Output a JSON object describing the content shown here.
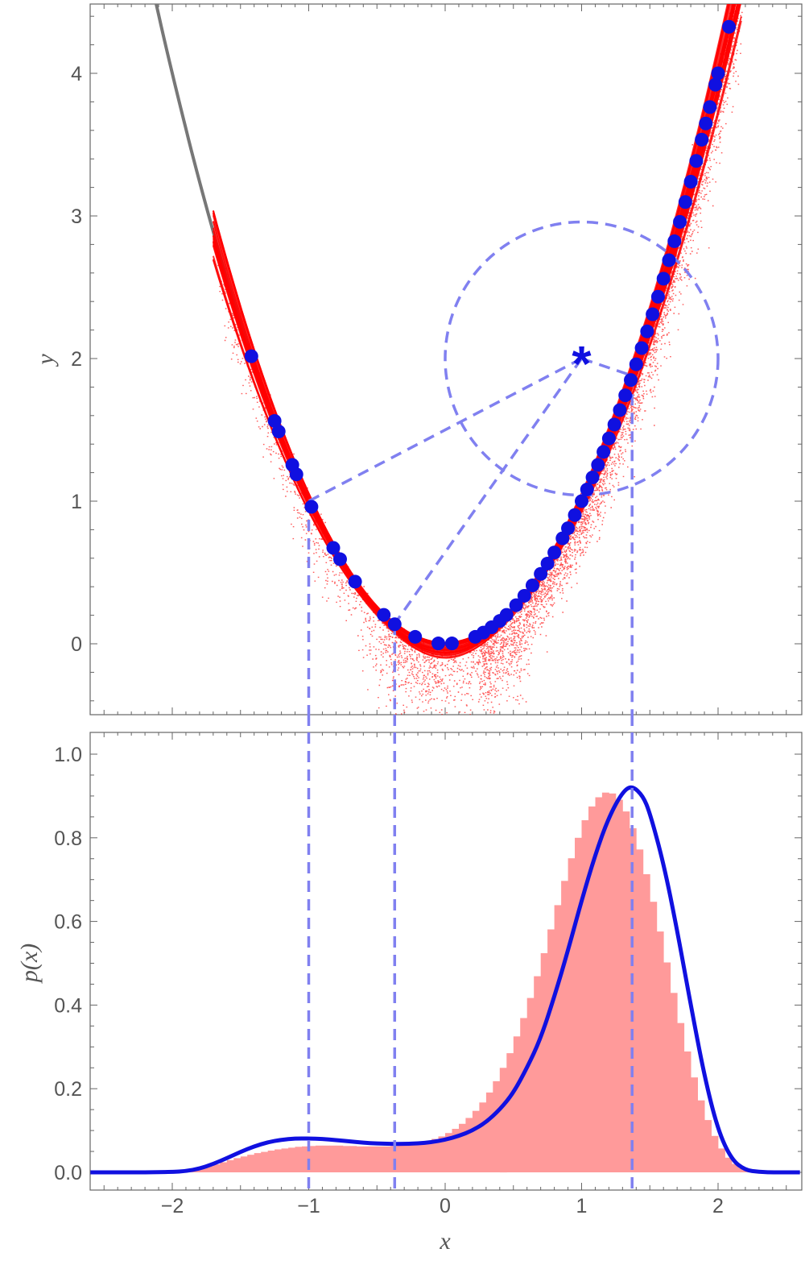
{
  "chart_data": [
    {
      "type": "scatter",
      "xlabel": "",
      "ylabel": "y",
      "xlim": [
        -2.6,
        2.6
      ],
      "ylim": [
        -0.5,
        4.5
      ],
      "x_ticks": [
        -2,
        -1,
        0,
        1,
        2
      ],
      "y_ticks": [
        0,
        1,
        2,
        3,
        4
      ],
      "y_tick_labels": [
        "0",
        "1",
        "2",
        "3",
        "4"
      ],
      "curve": {
        "function": "y = x^2",
        "color": "#777777"
      },
      "target_point": {
        "x": 1,
        "y": 2,
        "marker": "*"
      },
      "circle": {
        "center": [
          1,
          2
        ],
        "radius": 1
      },
      "connected_points": [
        {
          "x": -1.0,
          "y": 1.0
        },
        {
          "x": -0.37,
          "y": 0.14
        },
        {
          "x": 1.37,
          "y": 1.88
        }
      ],
      "sample_points_x": [
        -1.42,
        -1.25,
        -1.22,
        -1.12,
        -1.09,
        -0.98,
        -0.82,
        -0.77,
        -0.66,
        -0.45,
        -0.37,
        -0.22,
        -0.05,
        0.05,
        0.22,
        0.28,
        0.34,
        0.4,
        0.45,
        0.52,
        0.58,
        0.64,
        0.7,
        0.75,
        0.8,
        0.86,
        0.9,
        0.95,
        1.0,
        1.04,
        1.08,
        1.12,
        1.16,
        1.2,
        1.24,
        1.28,
        1.32,
        1.36,
        1.4,
        1.44,
        1.48,
        1.52,
        1.56,
        1.6,
        1.64,
        1.68,
        1.72,
        1.76,
        1.8,
        1.84,
        1.88,
        1.91,
        1.94,
        1.98,
        2.0,
        2.08
      ],
      "colors": {
        "curve": "#777777",
        "points": "#1010e0",
        "scatter": "#ff0000",
        "dashed": "#8080f0"
      }
    },
    {
      "type": "bar",
      "xlabel": "x",
      "ylabel": "p(x)",
      "xlim": [
        -2.6,
        2.6
      ],
      "ylim": [
        0,
        1.05
      ],
      "x_ticks": [
        -2,
        -1,
        0,
        1,
        2
      ],
      "x_tick_labels": [
        "−2",
        "−1",
        "0",
        "1",
        "2"
      ],
      "y_ticks": [
        0,
        0.2,
        0.4,
        0.6,
        0.8,
        1.0
      ],
      "y_tick_labels": [
        "0.0",
        "0.2",
        "0.4",
        "0.6",
        "0.8",
        "1.0"
      ],
      "bin_width": 0.05,
      "bin_start": -2.0,
      "histogram_values": [
        0.003,
        0.004,
        0.006,
        0.008,
        0.011,
        0.015,
        0.019,
        0.024,
        0.029,
        0.034,
        0.038,
        0.042,
        0.046,
        0.049,
        0.052,
        0.055,
        0.057,
        0.059,
        0.061,
        0.062,
        0.063,
        0.064,
        0.064,
        0.064,
        0.064,
        0.063,
        0.063,
        0.062,
        0.062,
        0.062,
        0.062,
        0.062,
        0.063,
        0.064,
        0.066,
        0.068,
        0.071,
        0.075,
        0.08,
        0.086,
        0.094,
        0.104,
        0.116,
        0.13,
        0.147,
        0.167,
        0.191,
        0.218,
        0.25,
        0.285,
        0.325,
        0.369,
        0.417,
        0.469,
        0.524,
        0.581,
        0.639,
        0.697,
        0.751,
        0.8,
        0.842,
        0.875,
        0.897,
        0.908,
        0.906,
        0.891,
        0.863,
        0.823,
        0.772,
        0.713,
        0.647,
        0.576,
        0.502,
        0.429,
        0.357,
        0.289,
        0.227,
        0.172,
        0.125,
        0.087,
        0.057,
        0.035,
        0.02,
        0.01,
        0.005
      ],
      "density_curve": {
        "x": [
          -2.6,
          -2.4,
          -2.2,
          -2.0,
          -1.9,
          -1.8,
          -1.7,
          -1.6,
          -1.5,
          -1.4,
          -1.3,
          -1.2,
          -1.1,
          -1.0,
          -0.9,
          -0.8,
          -0.7,
          -0.6,
          -0.5,
          -0.4,
          -0.3,
          -0.2,
          -0.1,
          0.0,
          0.1,
          0.2,
          0.3,
          0.4,
          0.5,
          0.6,
          0.7,
          0.8,
          0.9,
          1.0,
          1.1,
          1.2,
          1.3,
          1.37,
          1.45,
          1.5,
          1.6,
          1.7,
          1.8,
          1.9,
          2.0,
          2.1,
          2.2,
          2.3,
          2.4,
          2.6
        ],
        "y": [
          0,
          0,
          0,
          0.001,
          0.003,
          0.009,
          0.02,
          0.034,
          0.049,
          0.062,
          0.072,
          0.078,
          0.081,
          0.081,
          0.08,
          0.077,
          0.074,
          0.071,
          0.069,
          0.068,
          0.068,
          0.069,
          0.072,
          0.078,
          0.087,
          0.1,
          0.12,
          0.15,
          0.19,
          0.25,
          0.32,
          0.42,
          0.53,
          0.65,
          0.76,
          0.85,
          0.91,
          0.925,
          0.9,
          0.86,
          0.74,
          0.58,
          0.4,
          0.23,
          0.1,
          0.03,
          0.005,
          0.001,
          0,
          0
        ]
      },
      "connected_x": [
        -1.0,
        -0.37,
        1.37
      ],
      "colors": {
        "histogram": "#ff9090",
        "density": "#1010e0",
        "dashed": "#8080f0"
      }
    }
  ]
}
